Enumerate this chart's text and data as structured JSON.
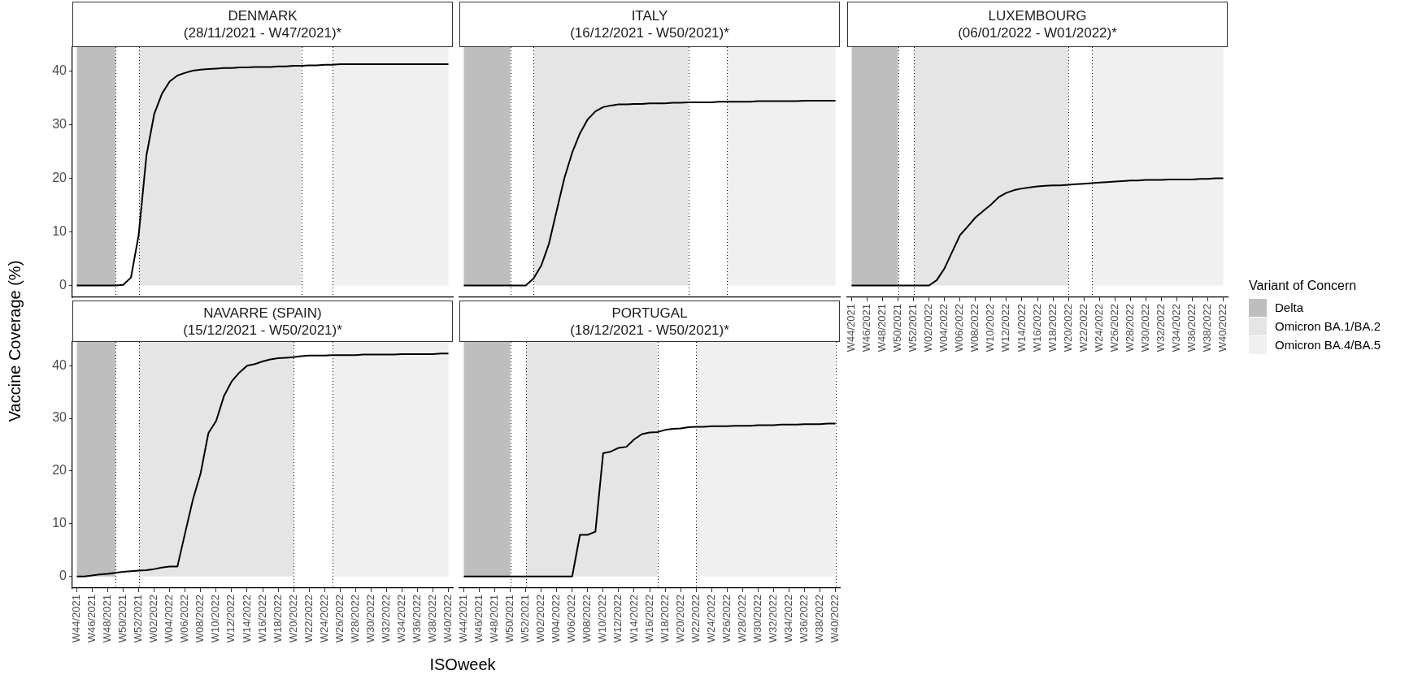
{
  "chart_data": [
    {
      "type": "line",
      "title": "DENMARK",
      "subtitle": "(28/11/2021 - W47/2021)*",
      "ylabel": "Vaccine Coverage (%)",
      "tick_labels": "y",
      "marker": "none",
      "line_style": "solid",
      "x": [
        "2021-11-01",
        "2021-11-08",
        "2021-11-15",
        "2021-11-22",
        "2021-11-29",
        "2021-12-06",
        "2021-12-13",
        "2021-12-20",
        "2021-12-27",
        "2022-01-03",
        "2022-01-10",
        "2022-01-17",
        "2022-01-24",
        "2022-01-31",
        "2022-02-07",
        "2022-02-14",
        "2022-02-21",
        "2022-02-28",
        "2022-03-07",
        "2022-03-14",
        "2022-03-21",
        "2022-03-28",
        "2022-04-04",
        "2022-04-11",
        "2022-04-18",
        "2022-04-25",
        "2022-05-02",
        "2022-05-09",
        "2022-05-16",
        "2022-05-23",
        "2022-05-30",
        "2022-06-06",
        "2022-06-13",
        "2022-06-20",
        "2022-06-27",
        "2022-07-04",
        "2022-07-11",
        "2022-07-18",
        "2022-07-25",
        "2022-08-01",
        "2022-08-08",
        "2022-08-15",
        "2022-08-22",
        "2022-08-29",
        "2022-09-05",
        "2022-09-12",
        "2022-09-19",
        "2022-09-26",
        "2022-10-03"
      ],
      "xlim": [
        "2021-10-28",
        "2022-10-07"
      ],
      "ylim": [
        -2.2,
        44.5
      ],
      "yticks": [
        0,
        10,
        20,
        30,
        40
      ],
      "bands": [
        {
          "axis": "x",
          "from": "2021-11-01",
          "to": "2021-12-06",
          "color": "#bebebe"
        },
        {
          "axis": "x",
          "from": "2021-12-27",
          "to": "2022-05-23",
          "color": "#e5e5e5"
        },
        {
          "axis": "x",
          "from": "2022-06-20",
          "to": "2022-10-03",
          "color": "#f0f0f0"
        }
      ],
      "ref_lines": [
        {
          "axis": "x",
          "value": "2021-12-06",
          "line_style": "dotted",
          "color": "#000000"
        },
        {
          "axis": "x",
          "value": "2021-12-27",
          "line_style": "dotted",
          "color": "#000000"
        },
        {
          "axis": "x",
          "value": "2022-05-23",
          "line_style": "dotted",
          "color": "#000000"
        },
        {
          "axis": "x",
          "value": "2022-06-20",
          "line_style": "dotted",
          "color": "#000000"
        }
      ],
      "series": [
        {
          "color": "#000000",
          "values": [
            0,
            0,
            0,
            0,
            0,
            0,
            0.1,
            1.5,
            9.5,
            24.3,
            32.0,
            35.8,
            38.1,
            39.2,
            39.7,
            40.1,
            40.3,
            40.4,
            40.5,
            40.6,
            40.6,
            40.7,
            40.7,
            40.8,
            40.8,
            40.8,
            40.9,
            40.9,
            41.0,
            41.0,
            41.1,
            41.1,
            41.2,
            41.2,
            41.3,
            41.3,
            41.3,
            41.3,
            41.3,
            41.3,
            41.3,
            41.3,
            41.3,
            41.3,
            41.3,
            41.3,
            41.3,
            41.3,
            41.3
          ]
        }
      ]
    },
    {
      "type": "line",
      "title": "ITALY",
      "subtitle": "(16/12/2021 - W50/2021)*",
      "tick_labels": false,
      "marker": "none",
      "line_style": "solid",
      "x": [
        "2021-11-01",
        "2021-11-08",
        "2021-11-15",
        "2021-11-22",
        "2021-11-29",
        "2021-12-06",
        "2021-12-13",
        "2021-12-20",
        "2021-12-27",
        "2022-01-03",
        "2022-01-10",
        "2022-01-17",
        "2022-01-24",
        "2022-01-31",
        "2022-02-07",
        "2022-02-14",
        "2022-02-21",
        "2022-02-28",
        "2022-03-07",
        "2022-03-14",
        "2022-03-21",
        "2022-03-28",
        "2022-04-04",
        "2022-04-11",
        "2022-04-18",
        "2022-04-25",
        "2022-05-02",
        "2022-05-09",
        "2022-05-16",
        "2022-05-23",
        "2022-05-30",
        "2022-06-06",
        "2022-06-13",
        "2022-06-20",
        "2022-06-27",
        "2022-07-04",
        "2022-07-11",
        "2022-07-18",
        "2022-07-25",
        "2022-08-01",
        "2022-08-08",
        "2022-08-15",
        "2022-08-22",
        "2022-08-29",
        "2022-09-05",
        "2022-09-12",
        "2022-09-19",
        "2022-09-26",
        "2022-10-03"
      ],
      "xlim": [
        "2021-10-28",
        "2022-10-07"
      ],
      "ylim": [
        -2.2,
        44.5
      ],
      "yticks": [
        0,
        10,
        20,
        30,
        40
      ],
      "bands": [
        {
          "axis": "x",
          "from": "2021-11-01",
          "to": "2021-12-13",
          "color": "#bebebe"
        },
        {
          "axis": "x",
          "from": "2022-01-03",
          "to": "2022-05-23",
          "color": "#e5e5e5"
        },
        {
          "axis": "x",
          "from": "2022-06-27",
          "to": "2022-10-03",
          "color": "#f0f0f0"
        }
      ],
      "ref_lines": [
        {
          "axis": "x",
          "value": "2021-12-13",
          "line_style": "dotted",
          "color": "#000000"
        },
        {
          "axis": "x",
          "value": "2022-01-03",
          "line_style": "dotted",
          "color": "#000000"
        },
        {
          "axis": "x",
          "value": "2022-05-23",
          "line_style": "dotted",
          "color": "#000000"
        },
        {
          "axis": "x",
          "value": "2022-06-27",
          "line_style": "dotted",
          "color": "#000000"
        }
      ],
      "series": [
        {
          "color": "#000000",
          "values": [
            0,
            0,
            0,
            0,
            0,
            0,
            0,
            0,
            0,
            1.3,
            3.7,
            7.8,
            14.0,
            20.1,
            24.8,
            28.4,
            31.0,
            32.5,
            33.3,
            33.6,
            33.8,
            33.8,
            33.9,
            33.9,
            34.0,
            34.0,
            34.0,
            34.1,
            34.1,
            34.2,
            34.2,
            34.2,
            34.2,
            34.3,
            34.3,
            34.3,
            34.3,
            34.3,
            34.4,
            34.4,
            34.4,
            34.4,
            34.4,
            34.4,
            34.5,
            34.5,
            34.5,
            34.5,
            34.5
          ]
        }
      ]
    },
    {
      "type": "line",
      "title": "LUXEMBOURG",
      "subtitle": "(06/01/2022 - W01/2022)*",
      "tick_labels": "x",
      "marker": "none",
      "line_style": "solid",
      "legend": "right",
      "legend_title": "Variant of Concern",
      "x": [
        "2021-11-01",
        "2021-11-08",
        "2021-11-15",
        "2021-11-22",
        "2021-11-29",
        "2021-12-06",
        "2021-12-13",
        "2021-12-20",
        "2021-12-27",
        "2022-01-03",
        "2022-01-10",
        "2022-01-17",
        "2022-01-24",
        "2022-01-31",
        "2022-02-07",
        "2022-02-14",
        "2022-02-21",
        "2022-02-28",
        "2022-03-07",
        "2022-03-14",
        "2022-03-21",
        "2022-03-28",
        "2022-04-04",
        "2022-04-11",
        "2022-04-18",
        "2022-04-25",
        "2022-05-02",
        "2022-05-09",
        "2022-05-16",
        "2022-05-23",
        "2022-05-30",
        "2022-06-06",
        "2022-06-13",
        "2022-06-20",
        "2022-06-27",
        "2022-07-04",
        "2022-07-11",
        "2022-07-18",
        "2022-07-25",
        "2022-08-01",
        "2022-08-08",
        "2022-08-15",
        "2022-08-22",
        "2022-08-29",
        "2022-09-05",
        "2022-09-12",
        "2022-09-19",
        "2022-09-26",
        "2022-10-03"
      ],
      "xlim": [
        "2021-10-28",
        "2022-10-07"
      ],
      "xticks": [
        {
          "value": "2021-11-01",
          "label": "W44/2021"
        },
        {
          "value": "2021-11-15",
          "label": "W46/2021"
        },
        {
          "value": "2021-11-29",
          "label": "W48/2021"
        },
        {
          "value": "2021-12-13",
          "label": "W50/2021"
        },
        {
          "value": "2021-12-27",
          "label": "W52/2021"
        },
        {
          "value": "2022-01-10",
          "label": "W02/2022"
        },
        {
          "value": "2022-01-24",
          "label": "W04/2022"
        },
        {
          "value": "2022-02-07",
          "label": "W06/2022"
        },
        {
          "value": "2022-02-21",
          "label": "W08/2022"
        },
        {
          "value": "2022-03-07",
          "label": "W10/2022"
        },
        {
          "value": "2022-03-21",
          "label": "W12/2022"
        },
        {
          "value": "2022-04-04",
          "label": "W14/2022"
        },
        {
          "value": "2022-04-18",
          "label": "W16/2022"
        },
        {
          "value": "2022-05-02",
          "label": "W18/2022"
        },
        {
          "value": "2022-05-16",
          "label": "W20/2022"
        },
        {
          "value": "2022-05-30",
          "label": "W22/2022"
        },
        {
          "value": "2022-06-13",
          "label": "W24/2022"
        },
        {
          "value": "2022-06-27",
          "label": "W26/2022"
        },
        {
          "value": "2022-07-11",
          "label": "W28/2022"
        },
        {
          "value": "2022-07-25",
          "label": "W30/2022"
        },
        {
          "value": "2022-08-08",
          "label": "W32/2022"
        },
        {
          "value": "2022-08-22",
          "label": "W34/2022"
        },
        {
          "value": "2022-09-05",
          "label": "W36/2022"
        },
        {
          "value": "2022-09-19",
          "label": "W38/2022"
        },
        {
          "value": "2022-10-03",
          "label": "W40/2022"
        }
      ],
      "ylim": [
        -2.2,
        44.5
      ],
      "yticks": [
        0,
        10,
        20,
        30,
        40
      ],
      "bands": [
        {
          "axis": "x",
          "from": "2021-11-01",
          "to": "2021-12-13",
          "label": "Delta",
          "color": "#bebebe"
        },
        {
          "axis": "x",
          "from": "2021-12-27",
          "to": "2022-05-16",
          "label": "Omicron BA.1/BA.2",
          "color": "#e5e5e5"
        },
        {
          "axis": "x",
          "from": "2022-06-06",
          "to": "2022-10-03",
          "label": "Omicron BA.4/BA.5",
          "color": "#f0f0f0"
        }
      ],
      "ref_lines": [
        {
          "axis": "x",
          "value": "2021-12-13",
          "line_style": "dotted",
          "color": "#000000"
        },
        {
          "axis": "x",
          "value": "2021-12-27",
          "line_style": "dotted",
          "color": "#000000"
        },
        {
          "axis": "x",
          "value": "2022-05-16",
          "line_style": "dotted",
          "color": "#000000"
        },
        {
          "axis": "x",
          "value": "2022-06-06",
          "line_style": "dotted",
          "color": "#000000"
        }
      ],
      "series": [
        {
          "color": "#000000",
          "values": [
            0,
            0,
            0,
            0,
            0,
            0,
            0,
            0,
            0,
            0,
            0,
            1.0,
            3.2,
            6.3,
            9.4,
            11.0,
            12.7,
            13.9,
            15.1,
            16.5,
            17.3,
            17.8,
            18.1,
            18.3,
            18.5,
            18.6,
            18.7,
            18.7,
            18.8,
            18.9,
            19.0,
            19.1,
            19.2,
            19.3,
            19.4,
            19.5,
            19.6,
            19.6,
            19.7,
            19.7,
            19.7,
            19.8,
            19.8,
            19.8,
            19.8,
            19.9,
            19.9,
            20.0,
            20.0
          ]
        }
      ]
    },
    {
      "type": "line",
      "title": "NAVARRE (SPAIN)",
      "subtitle": "(15/12/2021 - W50/2021)*",
      "xlabel": "ISOweek",
      "marker": "none",
      "line_style": "solid",
      "x": [
        "2021-11-01",
        "2021-11-08",
        "2021-11-15",
        "2021-11-22",
        "2021-11-29",
        "2021-12-06",
        "2021-12-13",
        "2021-12-20",
        "2021-12-27",
        "2022-01-03",
        "2022-01-10",
        "2022-01-17",
        "2022-01-24",
        "2022-01-31",
        "2022-02-07",
        "2022-02-14",
        "2022-02-21",
        "2022-02-28",
        "2022-03-07",
        "2022-03-14",
        "2022-03-21",
        "2022-03-28",
        "2022-04-04",
        "2022-04-11",
        "2022-04-18",
        "2022-04-25",
        "2022-05-02",
        "2022-05-09",
        "2022-05-16",
        "2022-05-23",
        "2022-05-30",
        "2022-06-06",
        "2022-06-13",
        "2022-06-20",
        "2022-06-27",
        "2022-07-04",
        "2022-07-11",
        "2022-07-18",
        "2022-07-25",
        "2022-08-01",
        "2022-08-08",
        "2022-08-15",
        "2022-08-22",
        "2022-08-29",
        "2022-09-05",
        "2022-09-12",
        "2022-09-19",
        "2022-09-26",
        "2022-10-03"
      ],
      "xlim": [
        "2021-10-28",
        "2022-10-07"
      ],
      "xticks": [
        {
          "value": "2021-11-01",
          "label": "W44/2021"
        },
        {
          "value": "2021-11-15",
          "label": "W46/2021"
        },
        {
          "value": "2021-11-29",
          "label": "W48/2021"
        },
        {
          "value": "2021-12-13",
          "label": "W50/2021"
        },
        {
          "value": "2021-12-27",
          "label": "W52/2021"
        },
        {
          "value": "2022-01-10",
          "label": "W02/2022"
        },
        {
          "value": "2022-01-24",
          "label": "W04/2022"
        },
        {
          "value": "2022-02-07",
          "label": "W06/2022"
        },
        {
          "value": "2022-02-21",
          "label": "W08/2022"
        },
        {
          "value": "2022-03-07",
          "label": "W10/2022"
        },
        {
          "value": "2022-03-21",
          "label": "W12/2022"
        },
        {
          "value": "2022-04-04",
          "label": "W14/2022"
        },
        {
          "value": "2022-04-18",
          "label": "W16/2022"
        },
        {
          "value": "2022-05-02",
          "label": "W18/2022"
        },
        {
          "value": "2022-05-16",
          "label": "W20/2022"
        },
        {
          "value": "2022-05-30",
          "label": "W22/2022"
        },
        {
          "value": "2022-06-13",
          "label": "W24/2022"
        },
        {
          "value": "2022-06-27",
          "label": "W26/2022"
        },
        {
          "value": "2022-07-11",
          "label": "W28/2022"
        },
        {
          "value": "2022-07-25",
          "label": "W30/2022"
        },
        {
          "value": "2022-08-08",
          "label": "W32/2022"
        },
        {
          "value": "2022-08-22",
          "label": "W34/2022"
        },
        {
          "value": "2022-09-05",
          "label": "W36/2022"
        },
        {
          "value": "2022-09-19",
          "label": "W38/2022"
        },
        {
          "value": "2022-10-03",
          "label": "W40/2022"
        }
      ],
      "ylim": [
        -2.2,
        44.5
      ],
      "yticks": [
        0,
        10,
        20,
        30,
        40
      ],
      "bands": [
        {
          "axis": "x",
          "from": "2021-11-01",
          "to": "2021-12-06",
          "color": "#bebebe"
        },
        {
          "axis": "x",
          "from": "2021-12-27",
          "to": "2022-05-16",
          "color": "#e5e5e5"
        },
        {
          "axis": "x",
          "from": "2022-06-20",
          "to": "2022-10-03",
          "color": "#f0f0f0"
        }
      ],
      "ref_lines": [
        {
          "axis": "x",
          "value": "2021-12-06",
          "line_style": "dotted",
          "color": "#000000"
        },
        {
          "axis": "x",
          "value": "2021-12-27",
          "line_style": "dotted",
          "color": "#000000"
        },
        {
          "axis": "x",
          "value": "2022-05-16",
          "line_style": "dotted",
          "color": "#000000"
        },
        {
          "axis": "x",
          "value": "2022-06-20",
          "line_style": "dotted",
          "color": "#000000"
        }
      ],
      "series": [
        {
          "color": "#000000",
          "values": [
            0,
            0.0,
            0.2,
            0.4,
            0.5,
            0.7,
            0.9,
            1.0,
            1.1,
            1.2,
            1.4,
            1.7,
            1.9,
            1.9,
            8.3,
            14.6,
            19.6,
            27.2,
            29.5,
            34.2,
            37.0,
            38.7,
            40.0,
            40.3,
            40.8,
            41.2,
            41.4,
            41.5,
            41.6,
            41.8,
            41.9,
            41.9,
            41.9,
            42.0,
            42.0,
            42.0,
            42.0,
            42.1,
            42.1,
            42.1,
            42.1,
            42.1,
            42.2,
            42.2,
            42.2,
            42.2,
            42.2,
            42.3,
            42.3
          ]
        }
      ]
    },
    {
      "type": "line",
      "title": "PORTUGAL",
      "subtitle": "(18/12/2021 - W50/2021)*",
      "tick_labels": "x",
      "marker": "none",
      "line_style": "solid",
      "x": [
        "2021-11-01",
        "2021-11-08",
        "2021-11-15",
        "2021-11-22",
        "2021-11-29",
        "2021-12-06",
        "2021-12-13",
        "2021-12-20",
        "2021-12-27",
        "2022-01-03",
        "2022-01-10",
        "2022-01-17",
        "2022-01-24",
        "2022-01-31",
        "2022-02-07",
        "2022-02-14",
        "2022-02-21",
        "2022-02-28",
        "2022-03-07",
        "2022-03-14",
        "2022-03-21",
        "2022-03-28",
        "2022-04-04",
        "2022-04-11",
        "2022-04-18",
        "2022-04-25",
        "2022-05-02",
        "2022-05-09",
        "2022-05-16",
        "2022-05-23",
        "2022-05-30",
        "2022-06-06",
        "2022-06-13",
        "2022-06-20",
        "2022-06-27",
        "2022-07-04",
        "2022-07-11",
        "2022-07-18",
        "2022-07-25",
        "2022-08-01",
        "2022-08-08",
        "2022-08-15",
        "2022-08-22",
        "2022-08-29",
        "2022-09-05",
        "2022-09-12",
        "2022-09-19",
        "2022-09-26",
        "2022-10-03"
      ],
      "xlim": [
        "2021-10-28",
        "2022-10-07"
      ],
      "xticks": [
        {
          "value": "2021-11-01",
          "label": "W44/2021"
        },
        {
          "value": "2021-11-15",
          "label": "W46/2021"
        },
        {
          "value": "2021-11-29",
          "label": "W48/2021"
        },
        {
          "value": "2021-12-13",
          "label": "W50/2021"
        },
        {
          "value": "2021-12-27",
          "label": "W52/2021"
        },
        {
          "value": "2022-01-10",
          "label": "W02/2022"
        },
        {
          "value": "2022-01-24",
          "label": "W04/2022"
        },
        {
          "value": "2022-02-07",
          "label": "W06/2022"
        },
        {
          "value": "2022-02-21",
          "label": "W08/2022"
        },
        {
          "value": "2022-03-07",
          "label": "W10/2022"
        },
        {
          "value": "2022-03-21",
          "label": "W12/2022"
        },
        {
          "value": "2022-04-04",
          "label": "W14/2022"
        },
        {
          "value": "2022-04-18",
          "label": "W16/2022"
        },
        {
          "value": "2022-05-02",
          "label": "W18/2022"
        },
        {
          "value": "2022-05-16",
          "label": "W20/2022"
        },
        {
          "value": "2022-05-30",
          "label": "W22/2022"
        },
        {
          "value": "2022-06-13",
          "label": "W24/2022"
        },
        {
          "value": "2022-06-27",
          "label": "W26/2022"
        },
        {
          "value": "2022-07-11",
          "label": "W28/2022"
        },
        {
          "value": "2022-07-25",
          "label": "W30/2022"
        },
        {
          "value": "2022-08-08",
          "label": "W32/2022"
        },
        {
          "value": "2022-08-22",
          "label": "W34/2022"
        },
        {
          "value": "2022-09-05",
          "label": "W36/2022"
        },
        {
          "value": "2022-09-19",
          "label": "W38/2022"
        },
        {
          "value": "2022-10-03",
          "label": "W40/2022"
        }
      ],
      "ylim": [
        -2.2,
        44.5
      ],
      "yticks": [
        0,
        10,
        20,
        30,
        40
      ],
      "bands": [
        {
          "axis": "x",
          "from": "2021-11-01",
          "to": "2021-12-13",
          "color": "#bebebe"
        },
        {
          "axis": "x",
          "from": "2021-12-27",
          "to": "2022-04-25",
          "color": "#e5e5e5"
        },
        {
          "axis": "x",
          "from": "2022-05-30",
          "to": "2022-10-03",
          "color": "#f0f0f0"
        }
      ],
      "ref_lines": [
        {
          "axis": "x",
          "value": "2021-12-13",
          "line_style": "dotted",
          "color": "#000000"
        },
        {
          "axis": "x",
          "value": "2021-12-27",
          "line_style": "dotted",
          "color": "#000000"
        },
        {
          "axis": "x",
          "value": "2022-04-25",
          "line_style": "dotted",
          "color": "#000000"
        },
        {
          "axis": "x",
          "value": "2022-05-30",
          "line_style": "dotted",
          "color": "#000000"
        },
        {
          "axis": "x",
          "value": "2022-10-03",
          "line_style": "dotted",
          "color": "#000000"
        }
      ],
      "series": [
        {
          "color": "#000000",
          "values": [
            0,
            0,
            0,
            0,
            0,
            0,
            0,
            0,
            0,
            0,
            0,
            0,
            0,
            0,
            0,
            7.9,
            7.9,
            8.5,
            23.4,
            23.7,
            24.4,
            24.6,
            26.0,
            27.0,
            27.3,
            27.4,
            27.8,
            28.0,
            28.1,
            28.3,
            28.4,
            28.4,
            28.5,
            28.5,
            28.5,
            28.6,
            28.6,
            28.6,
            28.7,
            28.7,
            28.7,
            28.8,
            28.8,
            28.8,
            28.9,
            28.9,
            28.9,
            29.0,
            29.0
          ]
        }
      ]
    }
  ]
}
